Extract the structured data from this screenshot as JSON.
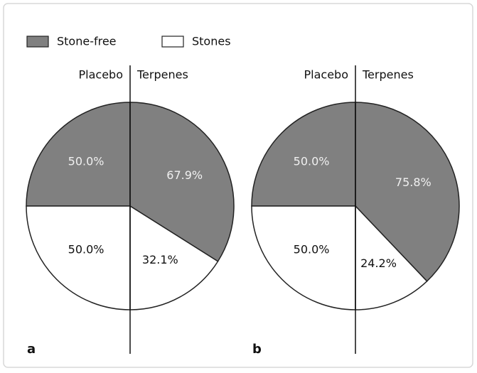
{
  "chart_data": [
    {
      "type": "pie",
      "panel": "a",
      "categories": [
        "Stone-free",
        "Stones"
      ],
      "colors": [
        "#808080",
        "#ffffff"
      ],
      "series": [
        {
          "name": "Placebo",
          "values": [
            50.0,
            50.0
          ],
          "value_labels": [
            "50.0%",
            "50.0%"
          ]
        },
        {
          "name": "Terpenes",
          "values": [
            67.9,
            32.1
          ],
          "value_labels": [
            "67.9%",
            "32.1%"
          ]
        }
      ]
    },
    {
      "type": "pie",
      "panel": "b",
      "categories": [
        "Stone-free",
        "Stones"
      ],
      "colors": [
        "#808080",
        "#ffffff"
      ],
      "series": [
        {
          "name": "Placebo",
          "values": [
            50.0,
            50.0
          ],
          "value_labels": [
            "50.0%",
            "50.0%"
          ]
        },
        {
          "name": "Terpenes",
          "values": [
            75.8,
            24.2
          ],
          "value_labels": [
            "75.8%",
            "24.2%"
          ]
        }
      ]
    }
  ]
}
